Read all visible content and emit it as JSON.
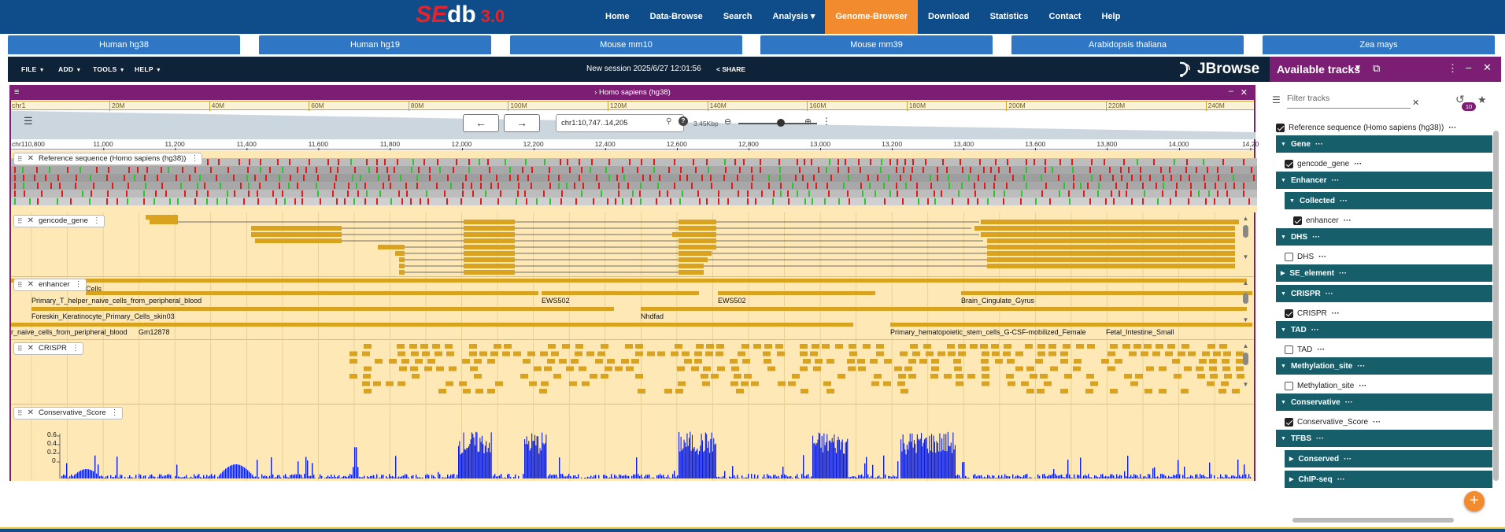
{
  "site": {
    "logo": {
      "se": "SE",
      "db": "db",
      "version": "3.0"
    },
    "nav": [
      {
        "label": "Home",
        "active": false
      },
      {
        "label": "Data-Browse",
        "active": false
      },
      {
        "label": "Search",
        "active": false
      },
      {
        "label": "Analysis ▾",
        "active": false
      },
      {
        "label": "Genome-Browser",
        "active": true
      },
      {
        "label": "Download",
        "active": false
      },
      {
        "label": "Statistics",
        "active": false
      },
      {
        "label": "Contact",
        "active": false
      },
      {
        "label": "Help",
        "active": false
      }
    ],
    "genome_tabs": [
      "Human hg38",
      "Human hg19",
      "Mouse mm10",
      "Mouse mm39",
      "Arabidopsis thaliana",
      "Zea mays"
    ]
  },
  "jbrowse": {
    "menus": [
      "FILE",
      "ADD",
      "TOOLS",
      "HELP"
    ],
    "session_name": "New session 2025/6/27 12:01:56",
    "share_label": "SHARE",
    "logo_text": "JBrowse"
  },
  "view": {
    "title": "Homo sapiens (hg38)",
    "chromosome": "chr1",
    "overview_ticks": [
      "20M",
      "40M",
      "60M",
      "80M",
      "100M",
      "120M",
      "140M",
      "160M",
      "180M",
      "200M",
      "220M",
      "240M"
    ],
    "locstring": "chr1:10,747..14,205",
    "bp_per_px": "3.45Kbp",
    "ruler_start": "10,800",
    "ruler_ticks": [
      "11,000",
      "11,200",
      "11,400",
      "11,600",
      "11,800",
      "12,000",
      "12,200",
      "12,400",
      "12,600",
      "12,800",
      "13,000",
      "13,200",
      "13,400",
      "13,600",
      "13,800",
      "14,000",
      "14,20"
    ]
  },
  "tracks": {
    "reference": {
      "label": "Reference sequence (Homo sapiens (hg38))"
    },
    "gencode": {
      "label": "gencode_gene"
    },
    "enhancer": {
      "label": "enhancer",
      "feature_labels": [
        "Cells",
        "Primary_T_helper_naive_cells_from_peripheral_blood",
        "EWS502",
        "EWS502",
        "Brain_Cingulate_Gyrus",
        "Foreskin_Keratinocyte_Primary_Cells_skin03",
        "Nhdfad",
        "r_naive_cells_from_peripheral_blood",
        "Gm12878",
        "Primary_hematopoietic_stem_cells_G-CSF-mobilized_Female",
        "Fetal_Intestine_Small"
      ]
    },
    "crispr": {
      "label": "CRISPR"
    },
    "conservative": {
      "label": "Conservative_Score",
      "y_ticks": [
        "0.6",
        "0.4",
        "0.2",
        "0"
      ]
    }
  },
  "panel": {
    "title": "Available tracks",
    "filter_placeholder": "Filter tracks",
    "recent_count": "10",
    "tree": [
      {
        "type": "leaf",
        "label": "Reference sequence (Homo sapiens (hg38))",
        "checked": true,
        "indent": 0
      },
      {
        "type": "cat",
        "label": "Gene",
        "expanded": true,
        "indent": 0
      },
      {
        "type": "leaf",
        "label": "gencode_gene",
        "checked": true,
        "indent": 1
      },
      {
        "type": "cat",
        "label": "Enhancer",
        "expanded": true,
        "indent": 0
      },
      {
        "type": "cat",
        "label": "Collected",
        "expanded": true,
        "indent": 1
      },
      {
        "type": "leaf",
        "label": "enhancer",
        "checked": true,
        "indent": 2
      },
      {
        "type": "cat",
        "label": "DHS",
        "expanded": true,
        "indent": 0
      },
      {
        "type": "leaf",
        "label": "DHS",
        "checked": false,
        "indent": 1
      },
      {
        "type": "cat",
        "label": "SE_element",
        "expanded": false,
        "indent": 0
      },
      {
        "type": "cat",
        "label": "CRISPR",
        "expanded": true,
        "indent": 0
      },
      {
        "type": "leaf",
        "label": "CRISPR",
        "checked": true,
        "indent": 1
      },
      {
        "type": "cat",
        "label": "TAD",
        "expanded": true,
        "indent": 0
      },
      {
        "type": "leaf",
        "label": "TAD",
        "checked": false,
        "indent": 1
      },
      {
        "type": "cat",
        "label": "Methylation_site",
        "expanded": true,
        "indent": 0
      },
      {
        "type": "leaf",
        "label": "Methylation_site",
        "checked": false,
        "indent": 1
      },
      {
        "type": "cat",
        "label": "Conservative",
        "expanded": true,
        "indent": 0
      },
      {
        "type": "leaf",
        "label": "Conservative_Score",
        "checked": true,
        "indent": 1
      },
      {
        "type": "cat",
        "label": "TFBS",
        "expanded": true,
        "indent": 0
      },
      {
        "type": "cat",
        "label": "Conserved",
        "expanded": false,
        "indent": 1
      },
      {
        "type": "cat",
        "label": "ChIP-seq",
        "expanded": false,
        "indent": 1
      }
    ]
  },
  "colors": {
    "site_header": "#0e4d8a",
    "nav_active": "#f28a2e",
    "genome_tab": "#2f77c4",
    "jbrowse_bar": "#0e2238",
    "view_header": "#7b1e74",
    "track_bg": "#fde8b6",
    "feature": "#d9a21f",
    "conservation": "#0b1ee0",
    "category": "#175e6b"
  }
}
